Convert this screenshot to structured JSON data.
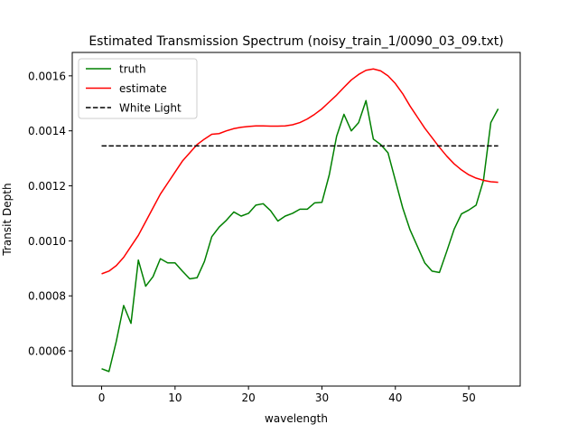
{
  "chart_data": {
    "type": "line",
    "title": "Estimated Transmission Spectrum (noisy_train_1/0090_03_09.txt)",
    "xlabel": "wavelength",
    "ylabel": "Transit Depth",
    "xlim": [
      -4,
      57
    ],
    "ylim": [
      0.000472,
      0.001685
    ],
    "xticks": [
      0,
      10,
      20,
      30,
      40,
      50
    ],
    "xtick_labels": [
      "0",
      "10",
      "20",
      "30",
      "40",
      "50"
    ],
    "yticks": [
      0.0006,
      0.0008,
      0.001,
      0.0012,
      0.0014,
      0.0016
    ],
    "ytick_labels": [
      "0.0006",
      "0.0008",
      "0.0010",
      "0.0012",
      "0.0014",
      "0.0016"
    ],
    "grid": false,
    "legend_position": "top-left",
    "series": [
      {
        "name": "truth",
        "color": "#008000",
        "style": "solid",
        "x": [
          0,
          1,
          2,
          3,
          4,
          5,
          6,
          7,
          8,
          9,
          10,
          11,
          12,
          13,
          14,
          15,
          16,
          17,
          18,
          19,
          20,
          21,
          22,
          23,
          24,
          25,
          26,
          27,
          28,
          29,
          30,
          31,
          32,
          33,
          34,
          35,
          36,
          37,
          38,
          39,
          40,
          41,
          42,
          43,
          44,
          45,
          46,
          47,
          48,
          49,
          50,
          51,
          52,
          53,
          54
        ],
        "y": [
          0.000535,
          0.000525,
          0.000635,
          0.000765,
          0.0007,
          0.00093,
          0.000835,
          0.00087,
          0.000935,
          0.00092,
          0.00092,
          0.00089,
          0.000862,
          0.000866,
          0.000925,
          0.001015,
          0.00105,
          0.001075,
          0.001105,
          0.00109,
          0.0011,
          0.00113,
          0.001135,
          0.00111,
          0.001072,
          0.00109,
          0.0011,
          0.001115,
          0.001115,
          0.001138,
          0.00114,
          0.00124,
          0.00138,
          0.00146,
          0.0014,
          0.00143,
          0.00151,
          0.00137,
          0.00135,
          0.00132,
          0.00122,
          0.00112,
          0.00104,
          0.00098,
          0.00092,
          0.00089,
          0.000885,
          0.000962,
          0.001042,
          0.001098,
          0.001112,
          0.00113,
          0.00122,
          0.00143,
          0.00148
        ]
      },
      {
        "name": "estimate",
        "color": "#ff0000",
        "style": "solid",
        "x": [
          0,
          1,
          2,
          3,
          4,
          5,
          6,
          7,
          8,
          9,
          10,
          11,
          12,
          13,
          14,
          15,
          16,
          17,
          18,
          19,
          20,
          21,
          22,
          23,
          24,
          25,
          26,
          27,
          28,
          29,
          30,
          31,
          32,
          33,
          34,
          35,
          36,
          37,
          38,
          39,
          40,
          41,
          42,
          43,
          44,
          45,
          46,
          47,
          48,
          49,
          50,
          51,
          52,
          53,
          54
        ],
        "y": [
          0.00088,
          0.00089,
          0.00091,
          0.00094,
          0.00098,
          0.00102,
          0.00107,
          0.00112,
          0.00117,
          0.00121,
          0.00125,
          0.00129,
          0.00132,
          0.00135,
          0.00137,
          0.0013875,
          0.00139,
          0.0014,
          0.001408,
          0.001413,
          0.001416,
          0.001418,
          0.001418,
          0.001417,
          0.001417,
          0.001418,
          0.001422,
          0.00143,
          0.001443,
          0.00146,
          0.00148,
          0.001505,
          0.00153,
          0.001558,
          0.001585,
          0.001605,
          0.00162,
          0.001625,
          0.001618,
          0.0016,
          0.001572,
          0.001535,
          0.00149,
          0.00145,
          0.00141,
          0.001375,
          0.00134,
          0.001308,
          0.00128,
          0.001258,
          0.00124,
          0.001228,
          0.00122,
          0.001215,
          0.001213
        ]
      },
      {
        "name": "White Light",
        "color": "#000000",
        "style": "dashed",
        "x": [
          0,
          54
        ],
        "y": [
          0.001345,
          0.001345
        ]
      }
    ]
  }
}
